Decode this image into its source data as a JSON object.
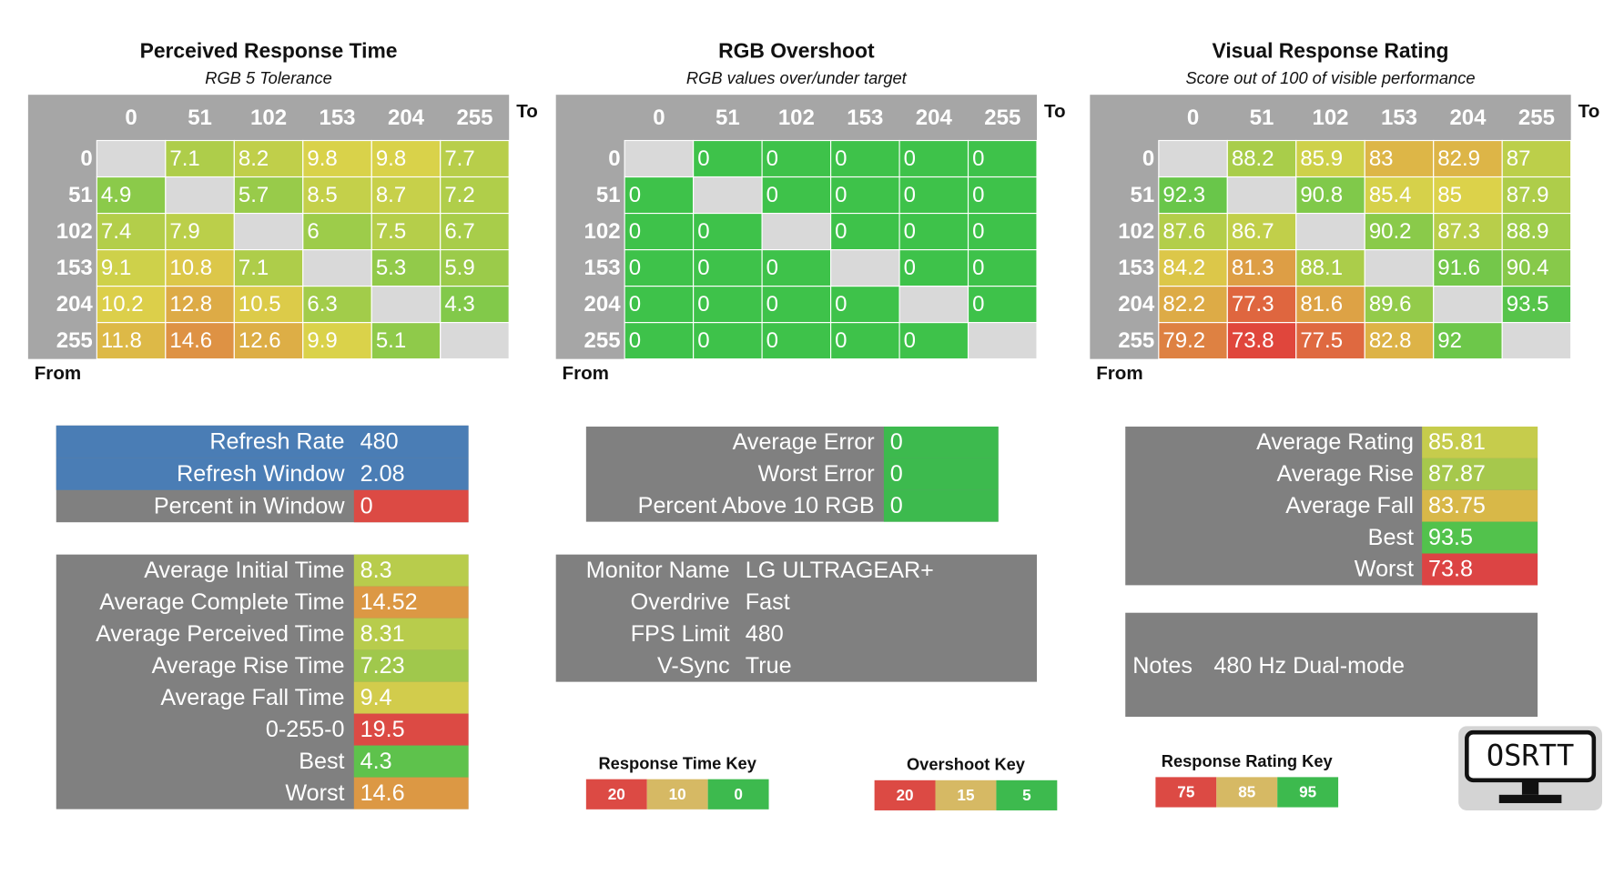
{
  "heatmaps": [
    {
      "title": "Perceived Response Time",
      "subtitle": "RGB 5 Tolerance",
      "to_label": "To",
      "from_label": "From",
      "columns": [
        0,
        51,
        102,
        153,
        204,
        255
      ],
      "rows": [
        0,
        51,
        102,
        153,
        204,
        255
      ],
      "cells": [
        [
          null,
          7.1,
          8.2,
          9.8,
          9.8,
          7.7
        ],
        [
          4.9,
          null,
          5.7,
          8.5,
          8.7,
          7.2
        ],
        [
          7.4,
          7.9,
          null,
          6,
          7.5,
          6.7
        ],
        [
          9.1,
          10.8,
          7.1,
          null,
          5.3,
          5.9
        ],
        [
          10.2,
          12.8,
          10.5,
          6.3,
          null,
          4.3
        ],
        [
          11.8,
          14.6,
          12.6,
          9.9,
          5.1,
          null
        ]
      ],
      "colors": [
        "#e0463c",
        "#dcd24a",
        "#3ec24a"
      ]
    },
    {
      "title": "RGB Overshoot",
      "subtitle": "RGB values over/under target",
      "to_label": "To",
      "from_label": "From",
      "columns": [
        0,
        51,
        102,
        153,
        204,
        255
      ],
      "rows": [
        0,
        51,
        102,
        153,
        204,
        255
      ],
      "cells": [
        [
          null,
          0,
          0,
          0,
          0,
          0
        ],
        [
          0,
          null,
          0,
          0,
          0,
          0
        ],
        [
          0,
          0,
          null,
          0,
          0,
          0
        ],
        [
          0,
          0,
          0,
          null,
          0,
          0
        ],
        [
          0,
          0,
          0,
          0,
          null,
          0
        ],
        [
          0,
          0,
          0,
          0,
          0,
          null
        ]
      ],
      "colors": [
        "#e0463c",
        "#dcd24a",
        "#3ec24a"
      ]
    },
    {
      "title": "Visual Response Rating",
      "subtitle": "Score out of 100 of visible performance",
      "to_label": "To",
      "from_label": "From",
      "columns": [
        0,
        51,
        102,
        153,
        204,
        255
      ],
      "rows": [
        0,
        51,
        102,
        153,
        204,
        255
      ],
      "cells": [
        [
          null,
          88.2,
          85.9,
          83,
          82.9,
          87
        ],
        [
          92.3,
          null,
          90.8,
          85.4,
          85,
          87.9
        ],
        [
          87.6,
          86.7,
          null,
          90.2,
          87.3,
          88.9
        ],
        [
          84.2,
          81.3,
          88.1,
          null,
          91.6,
          90.4
        ],
        [
          82.2,
          77.3,
          81.6,
          89.6,
          null,
          93.5
        ],
        [
          79.2,
          73.8,
          77.5,
          82.8,
          92,
          null
        ]
      ],
      "colors": [
        "#e0463c",
        "#dcd24a",
        "#3ec24a"
      ]
    }
  ],
  "summaries": [
    {
      "rows": [
        {
          "label": "Refresh Rate",
          "value": 480,
          "row_color": "#4a7db5"
        },
        {
          "label": "Refresh Window",
          "value": 2.08,
          "row_color": "#4a7db5"
        },
        {
          "label": "Percent in Window",
          "value": 0,
          "value_color": "#dc4a44"
        }
      ]
    },
    {
      "rows": [
        {
          "label": "Average Initial Time",
          "value": 8.3,
          "value_color": "#b8cc4c"
        },
        {
          "label": "Average Complete Time",
          "value": 14.52,
          "value_color": "#dc9844"
        },
        {
          "label": "Average Perceived Time",
          "value": 8.31,
          "value_color": "#b8cc4c"
        },
        {
          "label": "Average Rise Time",
          "value": 7.23,
          "value_color": "#a0c84c"
        },
        {
          "label": "Average Fall Time",
          "value": 9.4,
          "value_color": "#d2cc4c"
        },
        {
          "label": "0-255-0",
          "value": 19.5,
          "value_color": "#dc4a44"
        },
        {
          "label": "Best",
          "value": 4.3,
          "value_color": "#5ec24c"
        },
        {
          "label": "Worst",
          "value": 14.6,
          "value_color": "#dc9844"
        }
      ]
    },
    {
      "rows": [
        {
          "label": "Average Error",
          "value": 0,
          "value_color": "#3dba4e"
        },
        {
          "label": "Worst Error",
          "value": 0,
          "value_color": "#3dba4e"
        },
        {
          "label": "Percent Above 10 RGB",
          "value": 0,
          "value_color": "#3dba4e"
        }
      ]
    },
    {
      "rows": [
        {
          "label": "Monitor Name",
          "value": "LG ULTRAGEAR+"
        },
        {
          "label": "Overdrive",
          "value": "Fast"
        },
        {
          "label": "FPS Limit",
          "value": 480
        },
        {
          "label": "V-Sync",
          "value": "True"
        }
      ]
    },
    {
      "rows": [
        {
          "label": "Average Rating",
          "value": 85.81,
          "value_color": "#c6cc4c"
        },
        {
          "label": "Average Rise",
          "value": 87.87,
          "value_color": "#a6c84c"
        },
        {
          "label": "Average Fall",
          "value": 83.75,
          "value_color": "#d8b848"
        },
        {
          "label": "Best",
          "value": 93.5,
          "value_color": "#52c24c"
        },
        {
          "label": "Worst",
          "value": 73.8,
          "value_color": "#dc4444"
        }
      ]
    }
  ],
  "notes": {
    "label": "Notes",
    "value": "480 Hz Dual-mode"
  },
  "keys": [
    {
      "title": "Response Time Key",
      "values": [
        20,
        10,
        0
      ],
      "colors": [
        "#dc4a44",
        "#d6b964",
        "#3dba4e"
      ]
    },
    {
      "title": "Overshoot Key",
      "values": [
        20,
        15,
        5
      ],
      "colors": [
        "#dc4a44",
        "#d6b964",
        "#3dba4e"
      ]
    },
    {
      "title": "Response Rating Key",
      "values": [
        75,
        85,
        95
      ],
      "colors": [
        "#dc4a44",
        "#d6b964",
        "#3dba4e"
      ]
    }
  ],
  "logo": "OSRTT"
}
